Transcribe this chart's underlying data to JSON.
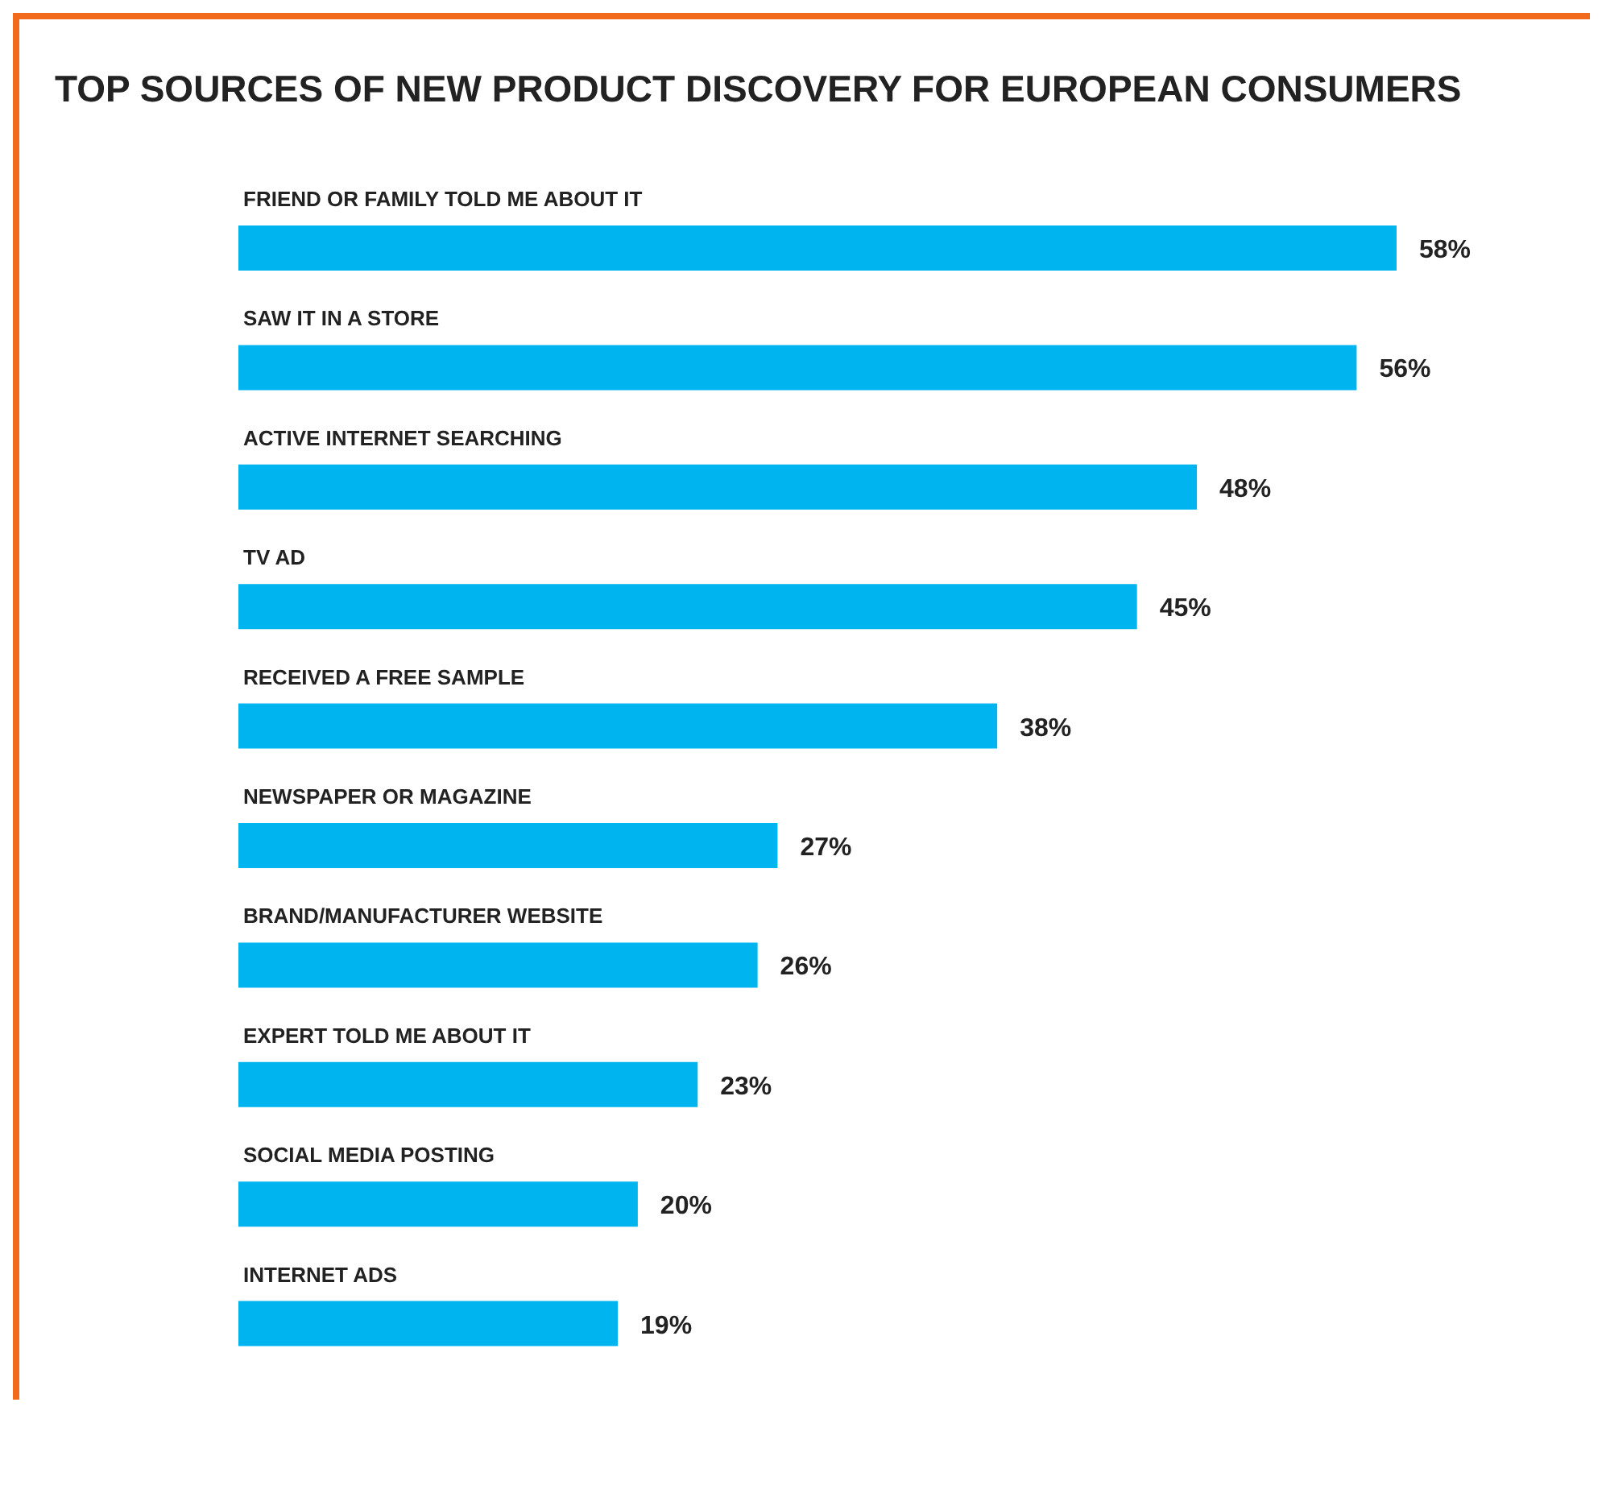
{
  "chart_data": {
    "type": "bar",
    "orientation": "horizontal",
    "title": "TOP SOURCES OF NEW PRODUCT DISCOVERY FOR EUROPEAN CONSUMERS",
    "categories": [
      "FRIEND OR FAMILY TOLD ME ABOUT IT",
      "SAW IT IN A STORE",
      "ACTIVE INTERNET SEARCHING",
      "TV AD",
      "RECEIVED A FREE SAMPLE",
      "NEWSPAPER OR MAGAZINE",
      "BRAND/MANUFACTURER WEBSITE",
      "EXPERT TOLD ME ABOUT IT",
      "SOCIAL MEDIA POSTING",
      "INTERNET ADS"
    ],
    "values": [
      58,
      56,
      48,
      45,
      38,
      27,
      26,
      23,
      20,
      19
    ],
    "value_labels": [
      "58%",
      "56%",
      "48%",
      "45%",
      "38%",
      "27%",
      "26%",
      "23%",
      "20%",
      "19%"
    ],
    "color": "#00b5ef"
  }
}
